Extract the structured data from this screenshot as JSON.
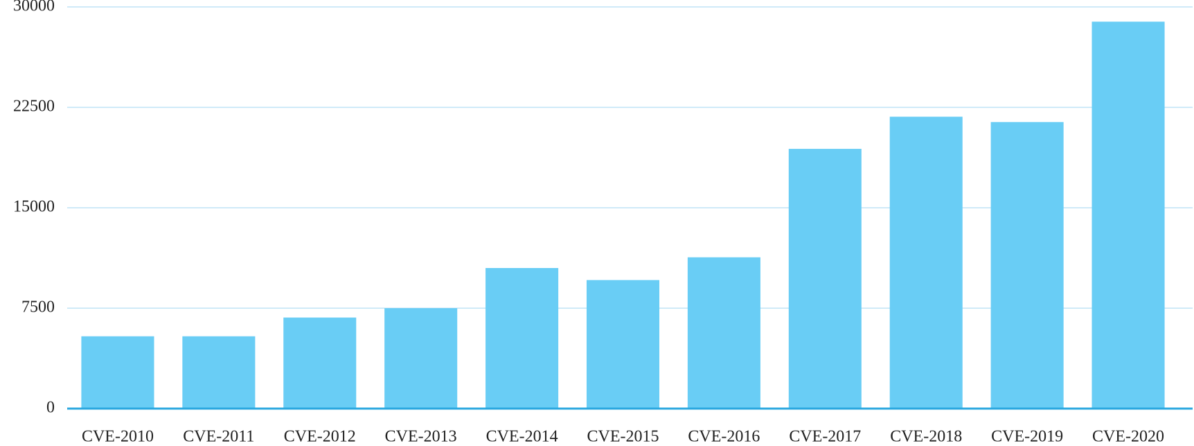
{
  "chart_data": {
    "type": "bar",
    "categories": [
      "CVE-2010",
      "CVE-2011",
      "CVE-2012",
      "CVE-2013",
      "CVE-2014",
      "CVE-2015",
      "CVE-2016",
      "CVE-2017",
      "CVE-2018",
      "CVE-2019",
      "CVE-2020"
    ],
    "values": [
      5400,
      5400,
      6800,
      7500,
      10500,
      9600,
      11300,
      19400,
      21800,
      21400,
      28900
    ],
    "color": "#69cdf5",
    "ylim": [
      0,
      30000
    ],
    "yticks": [
      0,
      7500,
      15000,
      22500,
      30000
    ],
    "grid": true
  }
}
